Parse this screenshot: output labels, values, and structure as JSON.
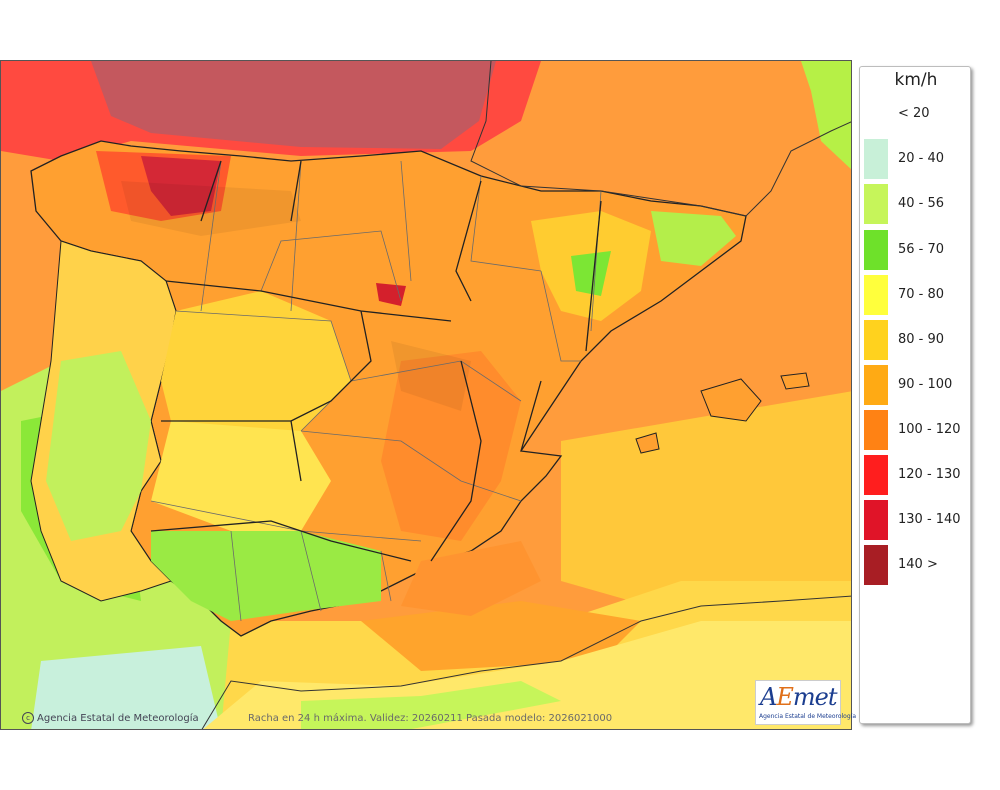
{
  "legend": {
    "unit": "km/h",
    "entries": [
      {
        "label": "< 20",
        "color": "#ffffff"
      },
      {
        "label": "20 - 40",
        "color": "#c8f0d8"
      },
      {
        "label": "40 - 56",
        "color": "#c6f55a"
      },
      {
        "label": "56 - 70",
        "color": "#6ee12a"
      },
      {
        "label": "70 - 80",
        "color": "#ffff3c"
      },
      {
        "label": "80 - 90",
        "color": "#ffd21e"
      },
      {
        "label": "90 - 100",
        "color": "#ffaa14"
      },
      {
        "label": "100 - 120",
        "color": "#ff8214"
      },
      {
        "label": "120 - 130",
        "color": "#ff1e1e"
      },
      {
        "label": "130 - 140",
        "color": "#e01428"
      },
      {
        "label": "140 >",
        "color": "#a81e24"
      }
    ]
  },
  "credit": "Agencia Estatal de Meteorología",
  "caption": "Racha en 24 h máxima. Validez: 20260211 Pasada modelo: 2026021000",
  "logo": {
    "brand_a": "A",
    "brand_e": "E",
    "brand_b": "met",
    "subtitle": "Agencia Estatal de Meteorología"
  }
}
